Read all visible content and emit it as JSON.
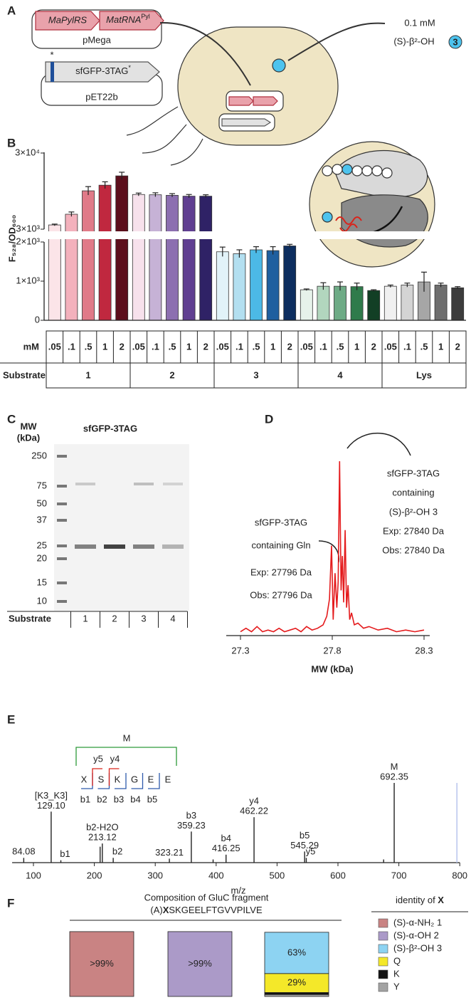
{
  "panel_labels": [
    "A",
    "B",
    "C",
    "D",
    "E",
    "F"
  ],
  "a": {
    "prs": "MaPylRS",
    "trna": "MatRNA",
    "trna_sup": "Pyl",
    "plasmid1": "pMega",
    "gene": "sfGFP-3TAG",
    "gene_sup": "*",
    "star": "*",
    "plasmid2": "pET22b",
    "conc": "0.1 mM",
    "compound": "(S)-β²-OH",
    "compound_no": "3"
  },
  "b": {
    "type": "bar",
    "ylabel": "F₅₂₈/OD₆₀₀",
    "ylim": [
      0,
      30000
    ],
    "ybreak": [
      2000,
      3000
    ],
    "yticks": [
      0,
      {
        "value": 1000,
        "label": "1×10³"
      },
      {
        "value": 2000,
        "label": "2×10³"
      },
      {
        "value": 3000,
        "label": "3×10³"
      },
      {
        "value": 30000,
        "label": "3×10⁴"
      }
    ],
    "row_labels": [
      "mM",
      "Substrate"
    ],
    "concentrations": [
      ".05",
      ".1",
      ".5",
      "1",
      "2"
    ],
    "groups": [
      {
        "name": "1",
        "colors": [
          "#fbe4e8",
          "#f3b1bc",
          "#e07a88",
          "#c0283f",
          "#5c0f1c"
        ],
        "values": [
          4500,
          8300,
          16600,
          18600,
          21900
        ],
        "errors": [
          300,
          800,
          1500,
          1200,
          1300
        ]
      },
      {
        "name": "2",
        "colors": [
          "#f7e1ec",
          "#c6b2d6",
          "#8c6fb0",
          "#603f91",
          "#2f2266"
        ],
        "values": [
          15300,
          15200,
          15000,
          14700,
          14700
        ],
        "errors": [
          500,
          700,
          600,
          600,
          500
        ]
      },
      {
        "name": "3",
        "colors": [
          "#e2f3f9",
          "#b3dff0",
          "#4cb9e6",
          "#1f5f9f",
          "#0d2e5f"
        ],
        "values": [
          1750,
          1700,
          1800,
          1780,
          1900
        ],
        "errors": [
          120,
          100,
          80,
          100,
          40
        ]
      },
      {
        "name": "4",
        "colors": [
          "#e6f2ea",
          "#b2d6be",
          "#6eab86",
          "#2f7b4b",
          "#123f25"
        ],
        "values": [
          780,
          870,
          870,
          860,
          760
        ],
        "errors": [
          20,
          90,
          110,
          90,
          20
        ]
      },
      {
        "name": "Lys",
        "colors": [
          "#f0f0f0",
          "#d4d4d4",
          "#a6a6a6",
          "#6e6e6e",
          "#3c3c3c"
        ],
        "values": [
          870,
          900,
          980,
          900,
          830
        ],
        "errors": [
          30,
          50,
          250,
          50,
          30
        ]
      }
    ]
  },
  "c": {
    "ylabel_1": "MW",
    "ylabel_2": "(kDa)",
    "title": "sfGFP-3TAG",
    "ladder": [
      250,
      75,
      50,
      37,
      25,
      20,
      15,
      10
    ],
    "row_label": "Substrate",
    "lanes": [
      "1",
      "2",
      "3",
      "4"
    ]
  },
  "d": {
    "type": "line",
    "xlabel": "MW (kDa)",
    "xlim": [
      27.3,
      28.3
    ],
    "xticks": [
      27.3,
      27.8,
      28.3
    ],
    "ylim": [
      0,
      100
    ],
    "color": "#e41a1c",
    "x": [
      27.3,
      27.33,
      27.36,
      27.39,
      27.42,
      27.45,
      27.48,
      27.51,
      27.54,
      27.57,
      27.6,
      27.63,
      27.66,
      27.69,
      27.72,
      27.75,
      27.77,
      27.785,
      27.796,
      27.805,
      27.815,
      27.825,
      27.832,
      27.84,
      27.848,
      27.855,
      27.862,
      27.87,
      27.878,
      27.886,
      27.895,
      27.905,
      27.92,
      27.94,
      27.97,
      28.0,
      28.05,
      28.1,
      28.15,
      28.2,
      28.25,
      28.3
    ],
    "values": [
      1,
      3,
      1,
      4,
      1,
      2,
      1,
      3,
      1,
      2,
      3,
      1,
      4,
      2,
      3,
      5,
      10,
      20,
      51,
      8,
      35,
      15,
      30,
      100,
      25,
      45,
      18,
      60,
      15,
      28,
      8,
      12,
      5,
      6,
      3,
      4,
      2,
      3,
      1,
      2,
      1,
      2
    ],
    "annotations": [
      [
        "sfGFP-3TAG",
        "containing Gln",
        "Exp: 27796 Da",
        "Obs: 27796 Da"
      ],
      [
        "sfGFP-3TAG",
        "containing",
        "(S)-β²-OH 3",
        "Exp: 27840 Da",
        "Obs: 27840 Da"
      ]
    ]
  },
  "e": {
    "type": "stick",
    "xlabel": "m/z",
    "xlim": [
      65,
      800
    ],
    "xticks": [
      100,
      200,
      300,
      400,
      500,
      600,
      700,
      800
    ],
    "ylim": [
      0,
      100
    ],
    "peaks": {
      "x": [
        84.08,
        129.1,
        145,
        209.5,
        213.12,
        231,
        323.21,
        359.23,
        395,
        416.25,
        462.22,
        545.29,
        548,
        675,
        692.35
      ],
      "values": [
        6,
        64,
        3,
        20,
        24,
        6,
        5,
        39,
        4,
        10,
        57,
        14,
        6,
        4,
        100
      ],
      "x_labels": [
        "84.08",
        "129.10",
        null,
        null,
        "213.12",
        null,
        "323.21",
        "359.23",
        null,
        "416.25",
        "462.22",
        "545.29",
        null,
        null,
        "692.35"
      ],
      "ions": [
        null,
        "[K3_K3]",
        "b1",
        null,
        "b2-H2O",
        "b2",
        null,
        "b3",
        null,
        "b4",
        "y4",
        "b5",
        "y5",
        null,
        "M"
      ],
      "ion_colors": [
        null,
        "#2e9a3a",
        "#2e5aac",
        null,
        "#2e5aac",
        "#2e5aac",
        null,
        "#2e5aac",
        null,
        "#2e5aac",
        "#d9241b",
        "#2e5aac",
        "#d9241b",
        null,
        "#2e9a3a"
      ]
    },
    "sequence": [
      "X",
      "S",
      "K",
      "G",
      "E",
      "E"
    ],
    "b_ions": [
      "b1",
      "b2",
      "b3",
      "b4",
      "b5"
    ],
    "y_ions": [
      "y5",
      "y4"
    ],
    "m_label": "M"
  },
  "f": {
    "type": "stacked_bar",
    "title": "Composition of GluC fragment",
    "sequence_prefix": "(A)",
    "sequence_bold": "X",
    "sequence_rest": "SKGEELFTGVVPILVE",
    "legend_title": "identity of ",
    "legend_title_bold": "X",
    "ylim": [
      0,
      100
    ],
    "categories": [
      null,
      null,
      null
    ],
    "series": [
      {
        "name": "(S)-α-NH₂ 1",
        "color": "#c98383",
        "values": [
          99,
          null,
          null
        ],
        "value_labels": [
          ">99%",
          null,
          null
        ]
      },
      {
        "name": "(S)-α-OH 2",
        "color": "#ab9ac8",
        "values": [
          null,
          99,
          null
        ],
        "value_labels": [
          null,
          ">99%",
          null
        ]
      },
      {
        "name": "(S)-β²-OH 3",
        "color": "#8dd3f2",
        "values": [
          null,
          null,
          63
        ],
        "value_labels": [
          null,
          null,
          "63%"
        ]
      },
      {
        "name": "Q",
        "color": "#f4e829",
        "values": [
          null,
          null,
          29
        ],
        "value_labels": [
          null,
          null,
          "29%"
        ]
      },
      {
        "name": "K",
        "color": "#111111",
        "values": [
          null,
          null,
          3
        ],
        "value_labels": [
          null,
          null,
          null
        ]
      },
      {
        "name": "Y",
        "color": "#a3a3a3",
        "values": [
          null,
          null,
          3
        ],
        "value_labels": [
          null,
          null,
          null
        ]
      }
    ]
  }
}
